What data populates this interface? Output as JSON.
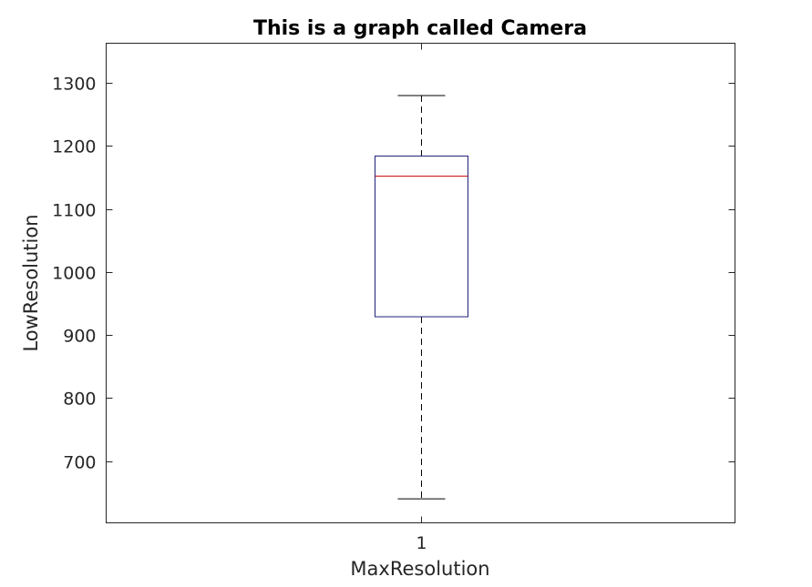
{
  "chart_data": {
    "type": "box",
    "title": "This is a graph called Camera",
    "xlabel": "MaxResolution",
    "ylabel": "LowResolution",
    "categories": [
      "1"
    ],
    "boxes": [
      {
        "category": "1",
        "whisker_low": 640,
        "q1": 929,
        "median": 1152,
        "q3": 1184,
        "whisker_high": 1280
      }
    ],
    "ylim": [
      602,
      1363
    ],
    "yticks": [
      700,
      800,
      900,
      1000,
      1100,
      1200,
      1300
    ],
    "grid": false,
    "colors": {
      "box": "#1f1f7a",
      "median": "#cc0000",
      "whisker": "#000000",
      "axes": "#262626"
    }
  }
}
